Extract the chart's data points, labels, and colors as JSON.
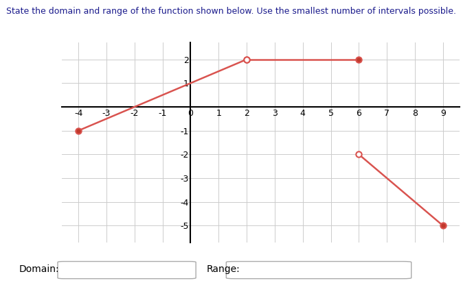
{
  "title": "State the domain and range of the function shown below. Use the smallest number of intervals possible.",
  "title_color": "#1a1a8c",
  "segments": [
    {
      "x": [
        -4,
        2
      ],
      "y": [
        -1,
        2
      ],
      "start_filled": true,
      "end_filled": false
    },
    {
      "x": [
        2,
        6
      ],
      "y": [
        2,
        2
      ],
      "start_filled": false,
      "end_filled": true
    },
    {
      "x": [
        6,
        9
      ],
      "y": [
        -2,
        -5
      ],
      "start_filled": false,
      "end_filled": true
    }
  ],
  "line_color": "#d9534f",
  "dot_facecolor_filled": "#c0392b",
  "dot_facecolor_open": "#ffffff",
  "dot_edgecolor": "#d9534f",
  "dot_size": 6,
  "xlim": [
    -4.6,
    9.6
  ],
  "ylim": [
    -5.7,
    2.7
  ],
  "xticks": [
    -4,
    -3,
    -2,
    -1,
    0,
    1,
    2,
    3,
    4,
    5,
    6,
    7,
    8,
    9
  ],
  "yticks": [
    -5,
    -4,
    -3,
    -2,
    -1,
    1,
    2
  ],
  "grid_color": "#cccccc",
  "background_color": "#ffffff",
  "domain_label": "Domain:",
  "range_label": "Range:",
  "figsize": [
    6.9,
    4.16
  ],
  "dpi": 100
}
